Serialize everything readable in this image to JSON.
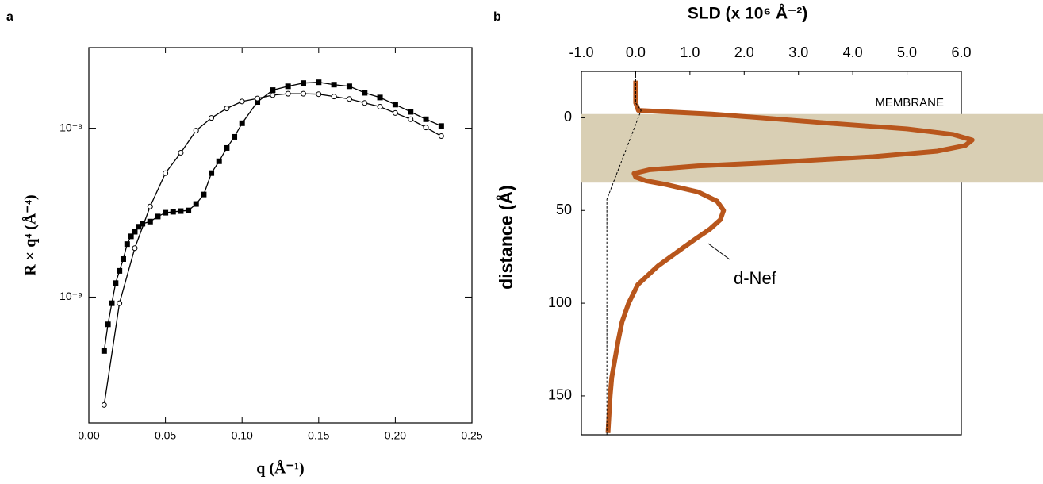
{
  "chart_data": [
    {
      "type": "line",
      "panel_label": "a",
      "x_label": "q  (Å⁻¹)",
      "y_label": "R × q⁴  (Å⁻⁴)",
      "xlim": [
        0,
        0.25
      ],
      "xticks": [
        {
          "value": 0,
          "label": "0.00"
        },
        0.05,
        {
          "value": 0.1,
          "label": "0.10"
        },
        0.15,
        {
          "value": 0.2,
          "label": "0.20"
        },
        0.25
      ],
      "ylim": [
        1.8e-10,
        3e-08
      ],
      "y_log": true,
      "yticks": [
        {
          "value": 1e-09,
          "label": "10⁻⁹"
        },
        {
          "value": 1e-08,
          "label": "10⁻⁸"
        }
      ],
      "series": [
        {
          "marker": "square",
          "color": "#000000",
          "x": [
            0.01,
            0.0125,
            0.015,
            0.0175,
            0.02,
            0.0225,
            0.025,
            0.0275,
            0.03,
            0.0325,
            0.035,
            0.04,
            0.045,
            0.05,
            0.055,
            0.06,
            0.065,
            0.07,
            0.075,
            0.08,
            0.085,
            0.09,
            0.095,
            0.1,
            0.11,
            0.12,
            0.13,
            0.14,
            0.15,
            0.16,
            0.17,
            0.18,
            0.19,
            0.2,
            0.21,
            0.22,
            0.23
          ],
          "values": [
            4.8e-10,
            6.9e-10,
            9.2e-10,
            1.21e-09,
            1.43e-09,
            1.68e-09,
            2.06e-09,
            2.29e-09,
            2.44e-09,
            2.61e-09,
            2.72e-09,
            2.8e-09,
            3e-09,
            3.16e-09,
            3.2e-09,
            3.23e-09,
            3.26e-09,
            3.56e-09,
            4.05e-09,
            5.42e-09,
            6.37e-09,
            7.64e-09,
            8.89e-09,
            1.07e-08,
            1.43e-08,
            1.68e-08,
            1.77e-08,
            1.85e-08,
            1.87e-08,
            1.81e-08,
            1.77e-08,
            1.62e-08,
            1.52e-08,
            1.38e-08,
            1.25e-08,
            1.13e-08,
            1.03e-08
          ]
        },
        {
          "marker": "circle",
          "color": "#000000",
          "x": [
            0.01,
            0.02,
            0.03,
            0.04,
            0.05,
            0.06,
            0.07,
            0.08,
            0.09,
            0.1,
            0.11,
            0.12,
            0.13,
            0.14,
            0.15,
            0.16,
            0.17,
            0.18,
            0.19,
            0.2,
            0.21,
            0.22,
            0.23
          ],
          "values": [
            2.3e-10,
            9.2e-10,
            1.95e-09,
            3.44e-09,
            5.42e-09,
            7.16e-09,
            9.68e-09,
            1.15e-08,
            1.31e-08,
            1.44e-08,
            1.5e-08,
            1.57e-08,
            1.6e-08,
            1.6e-08,
            1.59e-08,
            1.54e-08,
            1.49e-08,
            1.41e-08,
            1.34e-08,
            1.23e-08,
            1.13e-08,
            1.01e-08,
            8.98e-09
          ]
        }
      ]
    },
    {
      "type": "profile",
      "panel_label": "b",
      "x_label": "SLD  (x 10⁶  Å⁻²)",
      "y_label": "distance  (Å)",
      "xlim": [
        -1,
        6
      ],
      "xticks": [
        {
          "value": -1,
          "label": "-1.0"
        },
        {
          "value": 0,
          "label": "0.0"
        },
        {
          "value": 1,
          "label": "1.0"
        },
        {
          "value": 2,
          "label": "2.0"
        },
        {
          "value": 3,
          "label": "3.0"
        },
        {
          "value": 4,
          "label": "4.0"
        },
        {
          "value": 5,
          "label": "5.0"
        },
        {
          "value": 6,
          "label": "6.0"
        }
      ],
      "ylim": [
        171,
        -25
      ],
      "yticks": [
        0,
        50,
        100,
        150
      ],
      "band": {
        "label": "MEMBRANE",
        "range": [
          -2,
          35
        ],
        "color": "#d9cfb4"
      },
      "annotation": "d-Nef",
      "series": [
        {
          "color": "#b8561c",
          "dashed": false,
          "distance": [
            -20,
            -8,
            -4,
            -2,
            0,
            3,
            6,
            9,
            12,
            15,
            18,
            21,
            24,
            26,
            28,
            30,
            32,
            34,
            36,
            40,
            45,
            50,
            55,
            60,
            65,
            70,
            80,
            90,
            100,
            110,
            120,
            130,
            140,
            150,
            170
          ],
          "values": [
            0,
            0,
            0.05,
            1.4,
            2.3,
            3.6,
            5,
            5.85,
            6.2,
            6.07,
            5.56,
            4.38,
            2.6,
            1.15,
            0.26,
            -0.03,
            0,
            0.19,
            0.56,
            1.15,
            1.5,
            1.62,
            1.56,
            1.37,
            1.12,
            0.88,
            0.41,
            0.04,
            -0.13,
            -0.25,
            -0.32,
            -0.38,
            -0.44,
            -0.47,
            -0.51
          ]
        },
        {
          "color": "#000000",
          "dashed": true,
          "distance": [
            -25,
            -8,
            -4,
            44,
            171
          ],
          "values": [
            0,
            0,
            0.1,
            -0.53,
            -0.53
          ]
        }
      ]
    }
  ]
}
